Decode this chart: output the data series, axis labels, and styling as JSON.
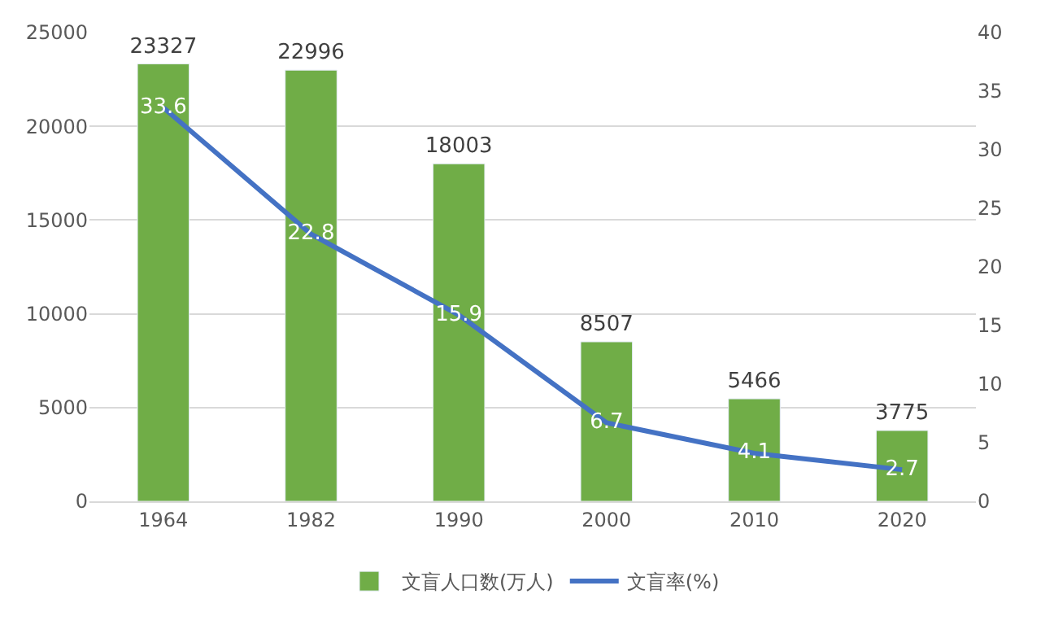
{
  "chart_data": {
    "type": "bar",
    "categories": [
      "1964",
      "1982",
      "1990",
      "2000",
      "2010",
      "2020"
    ],
    "series": [
      {
        "name": "文盲人口数(万人)",
        "color": "#70ad47",
        "values": [
          23327,
          22996,
          18003,
          8507,
          5466,
          3775
        ]
      },
      {
        "name": "文盲率(%)",
        "type": "line",
        "axis": "y2",
        "color": "#4472c4",
        "values": [
          33.6,
          22.8,
          15.9,
          6.7,
          4.1,
          2.7
        ]
      }
    ],
    "ylim": [
      0,
      25000
    ],
    "yticks": [
      0,
      5000,
      10000,
      15000,
      20000,
      25000
    ],
    "y2lim": [
      0,
      40
    ],
    "y2ticks": [
      0,
      5,
      10,
      15,
      20,
      25,
      30,
      35,
      40
    ],
    "data_labels": true,
    "grid": "y",
    "legend": "bottom",
    "marker": "none",
    "line_style": "solid"
  }
}
